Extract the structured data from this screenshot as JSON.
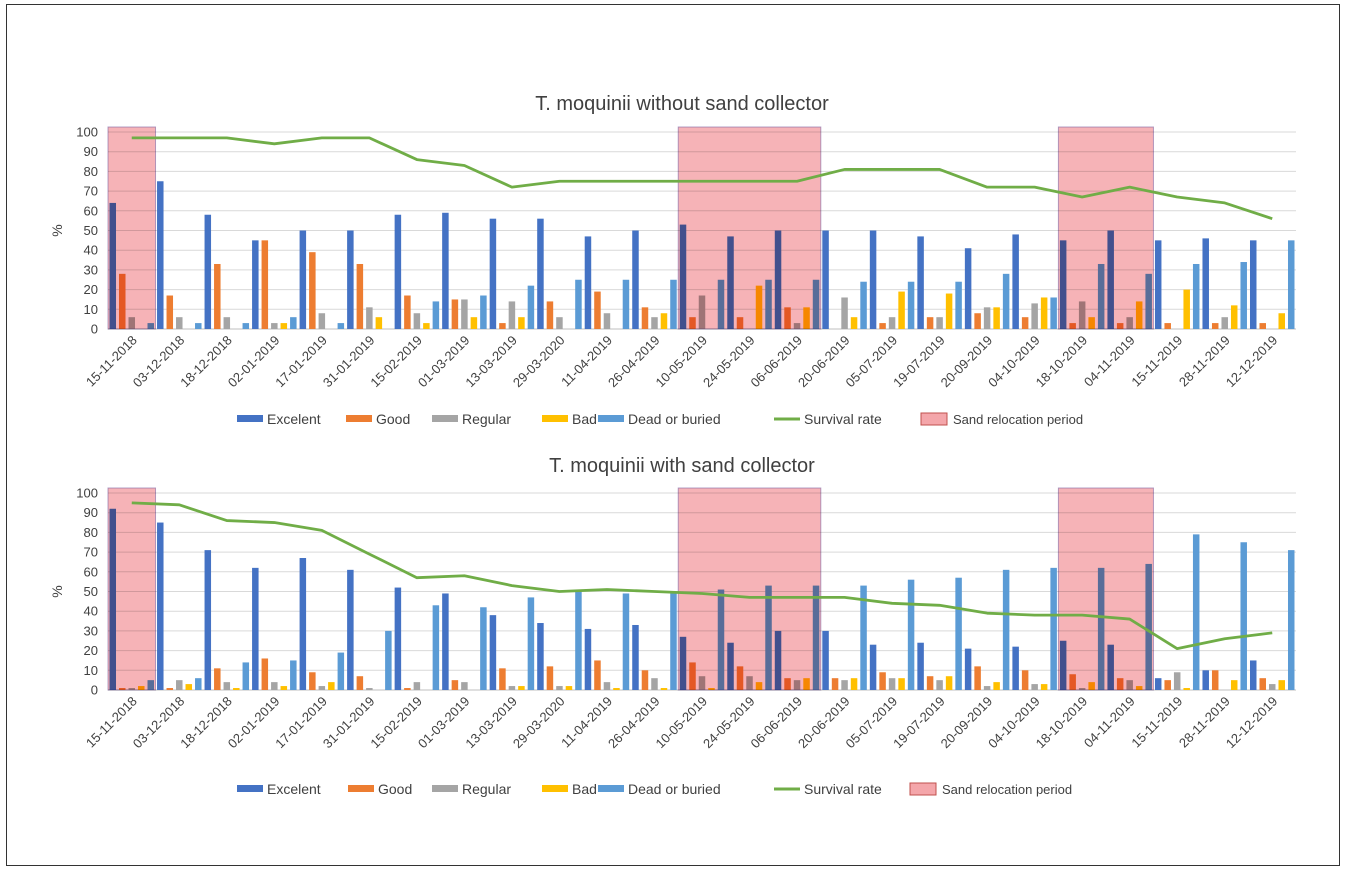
{
  "chart_data": [
    {
      "type": "bar",
      "title": "T. moquinii without sand collector",
      "ylabel": "%",
      "ylim": [
        0,
        100
      ],
      "yticks": [
        0,
        10,
        20,
        30,
        40,
        50,
        60,
        70,
        80,
        90,
        100
      ],
      "grid": true,
      "legend_position": "bottom",
      "categories": [
        "15-11-2018",
        "03-12-2018",
        "18-12-2018",
        "02-01-2019",
        "17-01-2019",
        "31-01-2019",
        "15-02-2019",
        "01-03-2019",
        "13-03-2019",
        "29-03-2020",
        "11-04-2019",
        "26-04-2019",
        "10-05-2019",
        "24-05-2019",
        "06-06-2019",
        "20-06-2019",
        "05-07-2019",
        "19-07-2019",
        "20-09-2019",
        "04-10-2019",
        "18-10-2019",
        "04-11-2019",
        "15-11-2019",
        "28-11-2019",
        "12-12-2019"
      ],
      "series": [
        {
          "name": "Excelent",
          "type": "bar",
          "color": "#4472C4",
          "values": [
            64,
            75,
            58,
            45,
            50,
            50,
            58,
            59,
            56,
            56,
            47,
            50,
            53,
            47,
            50,
            50,
            50,
            47,
            41,
            48,
            45,
            50,
            45,
            46,
            45
          ]
        },
        {
          "name": "Good",
          "type": "bar",
          "color": "#ED7D31",
          "values": [
            28,
            17,
            33,
            45,
            39,
            33,
            17,
            15,
            3,
            14,
            19,
            11,
            6,
            6,
            11,
            0,
            3,
            6,
            8,
            6,
            3,
            3,
            3,
            3,
            3
          ]
        },
        {
          "name": "Regular",
          "type": "bar",
          "color": "#A5A5A5",
          "values": [
            6,
            6,
            6,
            3,
            8,
            11,
            8,
            15,
            14,
            6,
            8,
            6,
            17,
            0,
            3,
            16,
            6,
            6,
            11,
            13,
            14,
            6,
            0,
            6,
            0
          ]
        },
        {
          "name": "Bad",
          "type": "bar",
          "color": "#FFC000",
          "values": [
            0,
            0,
            0,
            3,
            0,
            6,
            3,
            6,
            6,
            0,
            0,
            8,
            0,
            22,
            11,
            6,
            19,
            18,
            11,
            16,
            6,
            14,
            20,
            12,
            8
          ]
        },
        {
          "name": "Dead or buried",
          "type": "bar",
          "color": "#5B9BD5",
          "values": [
            3,
            3,
            3,
            6,
            3,
            0,
            14,
            17,
            22,
            25,
            25,
            25,
            25,
            25,
            25,
            24,
            24,
            24,
            28,
            16,
            33,
            28,
            33,
            34,
            45
          ]
        },
        {
          "name": "Survival rate",
          "type": "line",
          "color": "#70AD47",
          "values": [
            97,
            97,
            97,
            94,
            97,
            97,
            86,
            83,
            72,
            75,
            75,
            75,
            75,
            75,
            75,
            81,
            81,
            81,
            72,
            72,
            67,
            72,
            67,
            64,
            56
          ]
        }
      ],
      "shaded_periods": {
        "name": "Sand relocation period",
        "color": "#F4A6AA",
        "ranges": [
          [
            "15-11-2018",
            "15-11-2018"
          ],
          [
            "10-05-2019",
            "06-06-2019"
          ],
          [
            "18-10-2019",
            "04-11-2019"
          ]
        ]
      }
    },
    {
      "type": "bar",
      "title": "T. moquinii with sand collector",
      "ylabel": "%",
      "ylim": [
        0,
        100
      ],
      "yticks": [
        0,
        10,
        20,
        30,
        40,
        50,
        60,
        70,
        80,
        90,
        100
      ],
      "grid": true,
      "legend_position": "bottom",
      "categories": [
        "15-11-2018",
        "03-12-2018",
        "18-12-2018",
        "02-01-2019",
        "17-01-2019",
        "31-01-2019",
        "15-02-2019",
        "01-03-2019",
        "13-03-2019",
        "29-03-2020",
        "11-04-2019",
        "26-04-2019",
        "10-05-2019",
        "24-05-2019",
        "06-06-2019",
        "20-06-2019",
        "05-07-2019",
        "19-07-2019",
        "20-09-2019",
        "04-10-2019",
        "18-10-2019",
        "04-11-2019",
        "15-11-2019",
        "28-11-2019",
        "12-12-2019"
      ],
      "series": [
        {
          "name": "Excelent",
          "type": "bar",
          "color": "#4472C4",
          "values": [
            92,
            85,
            71,
            62,
            67,
            61,
            52,
            49,
            38,
            34,
            31,
            33,
            27,
            24,
            30,
            30,
            23,
            24,
            21,
            22,
            25,
            23,
            6,
            10,
            15
          ]
        },
        {
          "name": "Good",
          "type": "bar",
          "color": "#ED7D31",
          "values": [
            1,
            1,
            11,
            16,
            9,
            7,
            1,
            5,
            11,
            12,
            15,
            10,
            14,
            12,
            6,
            6,
            9,
            7,
            12,
            10,
            8,
            6,
            5,
            10,
            6
          ]
        },
        {
          "name": "Regular",
          "type": "bar",
          "color": "#A5A5A5",
          "values": [
            1,
            5,
            4,
            4,
            2,
            1,
            4,
            4,
            2,
            2,
            4,
            6,
            7,
            7,
            5,
            5,
            6,
            5,
            2,
            3,
            1,
            5,
            9,
            0,
            3
          ]
        },
        {
          "name": "Bad",
          "type": "bar",
          "color": "#FFC000",
          "values": [
            2,
            3,
            1,
            2,
            4,
            0,
            0,
            0,
            2,
            2,
            1,
            1,
            1,
            4,
            6,
            6,
            6,
            7,
            4,
            3,
            4,
            2,
            1,
            5,
            5
          ]
        },
        {
          "name": "Dead or buried",
          "type": "bar",
          "color": "#5B9BD5",
          "values": [
            5,
            6,
            14,
            15,
            19,
            30,
            43,
            42,
            47,
            50,
            49,
            50,
            51,
            53,
            53,
            53,
            56,
            57,
            61,
            62,
            62,
            64,
            79,
            75,
            71
          ]
        },
        {
          "name": "Survival rate",
          "type": "line",
          "color": "#70AD47",
          "values": [
            95,
            94,
            86,
            85,
            81,
            69,
            57,
            58,
            53,
            50,
            51,
            50,
            49,
            47,
            47,
            47,
            44,
            43,
            39,
            38,
            38,
            36,
            21,
            26,
            29
          ]
        }
      ],
      "shaded_periods": {
        "name": "Sand relocation period",
        "color": "#F4A6AA",
        "ranges": [
          [
            "15-11-2018",
            "15-11-2018"
          ],
          [
            "10-05-2019",
            "06-06-2019"
          ],
          [
            "18-10-2019",
            "04-11-2019"
          ]
        ]
      }
    }
  ]
}
